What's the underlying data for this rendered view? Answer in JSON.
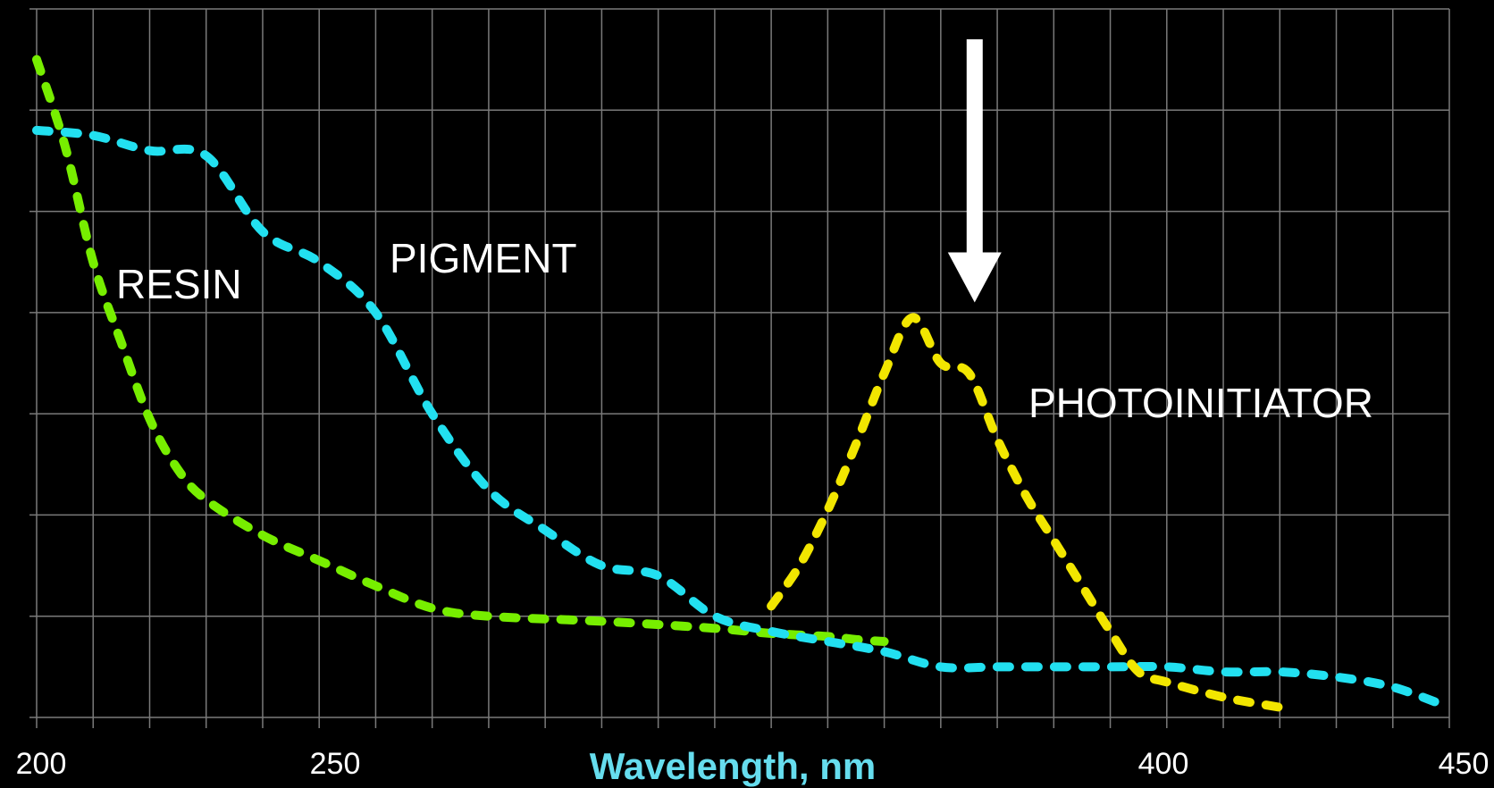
{
  "chart_data": {
    "type": "line",
    "title": "",
    "xlabel": "Wavelength, nm",
    "ylabel": "",
    "xlim": [
      200,
      450
    ],
    "ylim": [
      0,
      7
    ],
    "grid": true,
    "x_tick_labels": [
      "200",
      "250",
      "400",
      "450"
    ],
    "x_tick_values": [
      200,
      250,
      400,
      450
    ],
    "colors": {
      "xlabel": "#66ddee",
      "grid": "#7a7a7a",
      "resin": "#77ee00",
      "pigment": "#22e0f0",
      "photoinitiator": "#f2e600",
      "arrow": "#ffffff",
      "label": "#ffffff"
    },
    "series": [
      {
        "name": "RESIN",
        "x": [
          200,
          205,
          210,
          215,
          220,
          225,
          230,
          240,
          250,
          260,
          270,
          280,
          300,
          320,
          330,
          340,
          345,
          350
        ],
        "y": [
          6.5,
          5.65,
          4.5,
          3.7,
          2.95,
          2.45,
          2.15,
          1.8,
          1.55,
          1.3,
          1.08,
          1.0,
          0.95,
          0.88,
          0.83,
          0.8,
          0.77,
          0.75
        ]
      },
      {
        "name": "PIGMENT",
        "x": [
          200,
          210,
          220,
          230,
          240,
          250,
          260,
          270,
          280,
          290,
          300,
          310,
          320,
          330,
          340,
          350,
          360,
          370,
          380,
          390,
          400,
          410,
          420,
          430,
          440,
          450
        ],
        "y": [
          5.8,
          5.75,
          5.6,
          5.55,
          4.8,
          4.5,
          4.0,
          3.0,
          2.25,
          1.85,
          1.5,
          1.4,
          1.0,
          0.85,
          0.75,
          0.65,
          0.5,
          0.5,
          0.5,
          0.5,
          0.5,
          0.45,
          0.45,
          0.4,
          0.3,
          0.1
        ]
      },
      {
        "name": "PHOTOINITIATOR",
        "x": [
          330,
          335,
          340,
          345,
          350,
          355,
          360,
          365,
          370,
          375,
          380,
          385,
          390,
          395,
          400,
          410,
          420
        ],
        "y": [
          1.1,
          1.5,
          2.05,
          2.7,
          3.4,
          3.95,
          3.5,
          3.4,
          2.75,
          2.2,
          1.75,
          1.3,
          0.85,
          0.45,
          0.35,
          0.2,
          0.1
        ]
      }
    ],
    "labels": {
      "resin": "RESIN",
      "pigment": "PIGMENT",
      "photoinitiator": "PHOTOINITIATOR"
    },
    "annotation": {
      "type": "arrow",
      "x": 366,
      "y_from": 6.7,
      "y_to": 4.1
    }
  }
}
